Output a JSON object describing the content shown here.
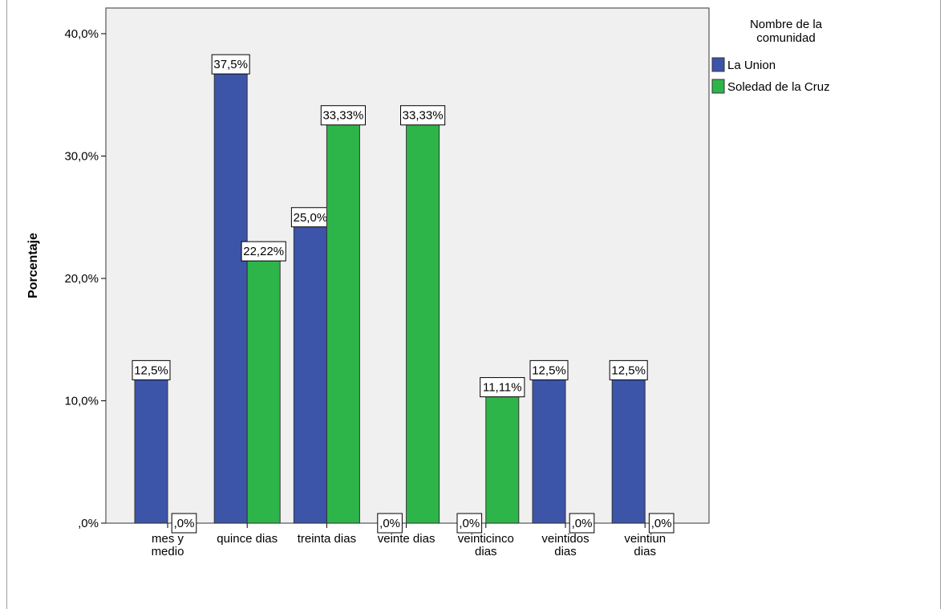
{
  "chart_data": {
    "type": "bar",
    "ylabel": "Porcentaje",
    "xlabel": "",
    "ylim": [
      0,
      40
    ],
    "yticks": [
      {
        "value": 0,
        "label": ",0%"
      },
      {
        "value": 10,
        "label": "10,0%"
      },
      {
        "value": 20,
        "label": "20,0%"
      },
      {
        "value": 30,
        "label": "30,0%"
      },
      {
        "value": 40,
        "label": "40,0%"
      }
    ],
    "categories": [
      [
        "mes y",
        "medio"
      ],
      [
        "quince dias"
      ],
      [
        "treinta dias"
      ],
      [
        "veinte dias"
      ],
      [
        "veinticinco",
        "dias"
      ],
      [
        "veintidos",
        "dias"
      ],
      [
        "veintiun",
        "dias"
      ]
    ],
    "legend": {
      "title": [
        "Nombre de la",
        "comunidad"
      ],
      "position": "top-right"
    },
    "series": [
      {
        "name": "La Union",
        "color": "#3c55a9",
        "values": [
          12.5,
          37.5,
          25.0,
          0,
          0,
          12.5,
          12.5
        ],
        "labels": [
          "12,5%",
          "37,5%",
          "25,0%",
          ",0%",
          ",0%",
          "12,5%",
          "12,5%"
        ]
      },
      {
        "name": "Soledad de la Cruz",
        "color": "#2eb54a",
        "values": [
          0,
          22.22,
          33.33,
          33.33,
          11.11,
          0,
          0
        ],
        "labels": [
          ",0%",
          "22,22%",
          "33,33%",
          "33,33%",
          "11,11%",
          ",0%",
          ",0%"
        ]
      }
    ],
    "plot_background": "#f0f0f0",
    "grid": false
  }
}
